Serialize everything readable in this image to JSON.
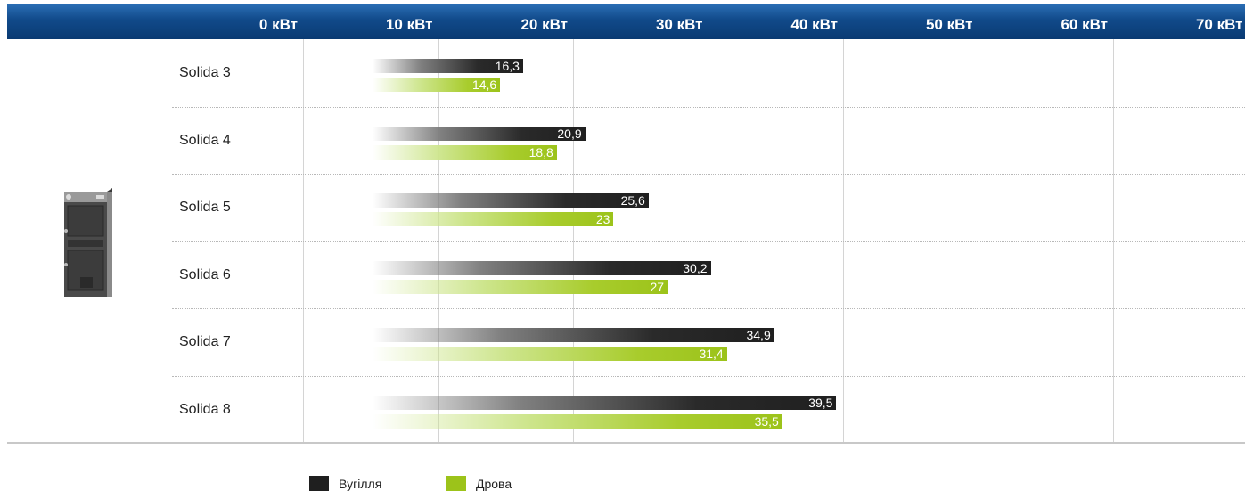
{
  "chart_data": {
    "type": "bar",
    "orientation": "horizontal",
    "xlabel": "",
    "ylabel": "",
    "xlim": [
      0,
      70
    ],
    "ticks": [
      "0 кВт",
      "10 кВт",
      "20 кВт",
      "30 кВт",
      "40 кВт",
      "50 кВт",
      "60 кВт",
      "70 кВт"
    ],
    "categories": [
      "Solida 3",
      "Solida 4",
      "Solida 5",
      "Solida 6",
      "Solida 7",
      "Solida 8"
    ],
    "series": [
      {
        "name": "Вугілля",
        "color": "#1f1f1f",
        "values": [
          16.3,
          20.9,
          25.6,
          30.2,
          34.9,
          39.5
        ],
        "labels": [
          "16,3",
          "20,9",
          "25,6",
          "30,2",
          "34,9",
          "39,5"
        ]
      },
      {
        "name": "Дрова",
        "color": "#9cc31a",
        "values": [
          14.6,
          18.8,
          23,
          27,
          31.4,
          35.5
        ],
        "labels": [
          "14,6",
          "18,8",
          "23",
          "27",
          "31,4",
          "35,5"
        ]
      }
    ],
    "grid": true,
    "legend": "bottom-center",
    "header_color": "#114a8a"
  }
}
